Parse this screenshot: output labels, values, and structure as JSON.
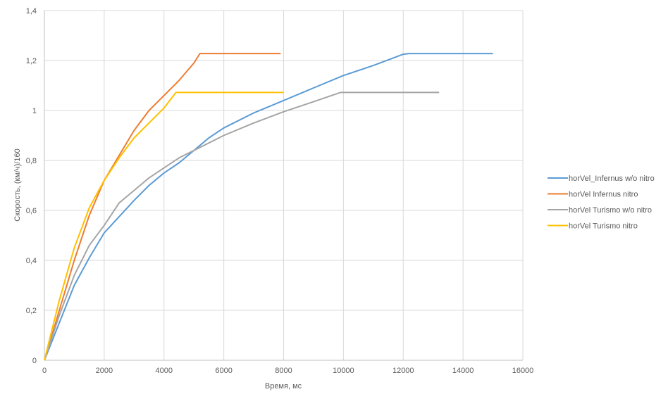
{
  "chart_data": {
    "type": "line",
    "xlabel": "Время,  мс",
    "ylabel": "Скорость, (км/ч)/160",
    "xlim": [
      0,
      16000
    ],
    "ylim": [
      0,
      1.4
    ],
    "x_ticks": [
      0,
      2000,
      4000,
      6000,
      8000,
      10000,
      12000,
      14000,
      16000
    ],
    "x_tick_labels": [
      "0",
      "2000",
      "4000",
      "6000",
      "8000",
      "10000",
      "12000",
      "14000",
      "16000"
    ],
    "y_ticks": [
      0,
      0.2,
      0.4,
      0.6,
      0.8,
      1,
      1.2,
      1.4
    ],
    "y_tick_labels": [
      "0",
      "0,2",
      "0,4",
      "0,6",
      "0,8",
      "1",
      "1,2",
      "1,4"
    ],
    "grid": true,
    "legend_position": "right",
    "series": [
      {
        "name": "horVel_Infernus w/o nitro",
        "color": "#5B9BD5",
        "points": [
          [
            0,
            0
          ],
          [
            500,
            0.15
          ],
          [
            1000,
            0.3
          ],
          [
            1500,
            0.41
          ],
          [
            2000,
            0.51
          ],
          [
            2500,
            0.575
          ],
          [
            3000,
            0.64
          ],
          [
            3500,
            0.7
          ],
          [
            4000,
            0.75
          ],
          [
            4500,
            0.79
          ],
          [
            5000,
            0.84
          ],
          [
            5500,
            0.89
          ],
          [
            6000,
            0.93
          ],
          [
            7000,
            0.99
          ],
          [
            8000,
            1.04
          ],
          [
            9000,
            1.09
          ],
          [
            10000,
            1.14
          ],
          [
            11000,
            1.18
          ],
          [
            12000,
            1.225
          ],
          [
            12200,
            1.228
          ],
          [
            15000,
            1.228
          ]
        ]
      },
      {
        "name": "horVel Infernus nitro",
        "color": "#ED7D31",
        "points": [
          [
            0,
            0
          ],
          [
            500,
            0.2
          ],
          [
            1000,
            0.4
          ],
          [
            1500,
            0.58
          ],
          [
            2000,
            0.72
          ],
          [
            2500,
            0.82
          ],
          [
            3000,
            0.92
          ],
          [
            3500,
            1.0
          ],
          [
            4000,
            1.06
          ],
          [
            4500,
            1.12
          ],
          [
            5000,
            1.19
          ],
          [
            5200,
            1.228
          ],
          [
            7900,
            1.228
          ]
        ]
      },
      {
        "name": "horVel Turismo w/o nitro",
        "color": "#A5A5A5",
        "points": [
          [
            0,
            0
          ],
          [
            500,
            0.18
          ],
          [
            1000,
            0.34
          ],
          [
            1500,
            0.46
          ],
          [
            2000,
            0.54
          ],
          [
            2500,
            0.63
          ],
          [
            3000,
            0.68
          ],
          [
            3500,
            0.73
          ],
          [
            4000,
            0.77
          ],
          [
            4500,
            0.81
          ],
          [
            5000,
            0.84
          ],
          [
            6000,
            0.9
          ],
          [
            7000,
            0.95
          ],
          [
            8000,
            0.995
          ],
          [
            9000,
            1.035
          ],
          [
            9900,
            1.072
          ],
          [
            13200,
            1.072
          ]
        ]
      },
      {
        "name": "horVel Turismo nitro",
        "color": "#FFC000",
        "points": [
          [
            0,
            0
          ],
          [
            500,
            0.24
          ],
          [
            1000,
            0.45
          ],
          [
            1500,
            0.61
          ],
          [
            2000,
            0.72
          ],
          [
            2500,
            0.81
          ],
          [
            3000,
            0.89
          ],
          [
            3500,
            0.95
          ],
          [
            4000,
            1.01
          ],
          [
            4400,
            1.072
          ],
          [
            8000,
            1.072
          ]
        ]
      }
    ]
  }
}
